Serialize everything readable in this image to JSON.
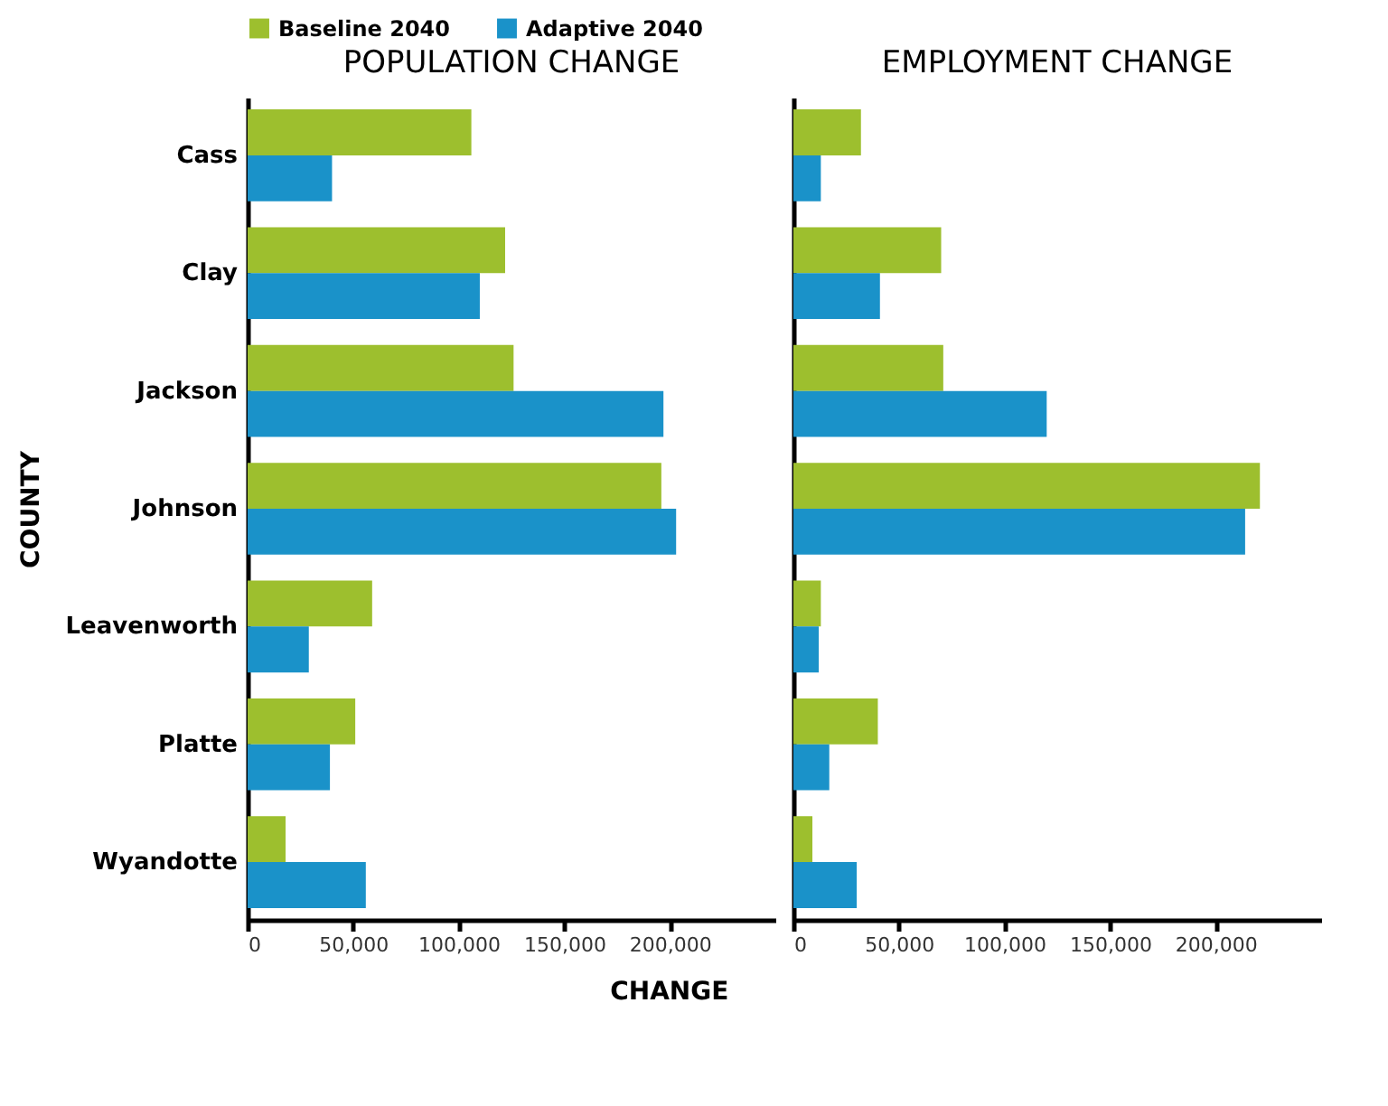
{
  "chart_data": [
    {
      "type": "bar",
      "orientation": "horizontal",
      "title": "POPULATION CHANGE",
      "xlabel": "CHANGE",
      "ylabel": "COUNTY",
      "legend": "top",
      "categories": [
        "Cass",
        "Clay",
        "Jackson",
        "Johnson",
        "Leavenworth",
        "Platte",
        "Wyandotte"
      ],
      "series": [
        {
          "name": "Baseline 2040",
          "color": "#9dbf2e",
          "values": [
            106000,
            122000,
            126000,
            196000,
            59000,
            51000,
            18000
          ]
        },
        {
          "name": "Adaptive 2040",
          "color": "#1a92c9",
          "values": [
            40000,
            110000,
            197000,
            203000,
            29000,
            39000,
            56000
          ]
        }
      ],
      "xlim": [
        0,
        250000
      ],
      "xticks": [
        0,
        {
          "value": 50000,
          "label": "50,000"
        },
        {
          "value": 100000,
          "label": "100,000"
        },
        {
          "value": 150000,
          "label": "150,000"
        },
        {
          "value": 200000,
          "label": "200,000"
        }
      ]
    },
    {
      "type": "bar",
      "orientation": "horizontal",
      "title": "EMPLOYMENT CHANGE",
      "legend": false,
      "tick_labels": "x",
      "categories": [
        "Cass",
        "Clay",
        "Jackson",
        "Johnson",
        "Leavenworth",
        "Platte",
        "Wyandotte"
      ],
      "series": [
        {
          "name": "Baseline 2040",
          "color": "#9dbf2e",
          "values": [
            32000,
            70000,
            71000,
            221000,
            13000,
            40000,
            9000
          ]
        },
        {
          "name": "Adaptive 2040",
          "color": "#1a92c9",
          "values": [
            13000,
            41000,
            120000,
            214000,
            12000,
            17000,
            30000
          ]
        }
      ],
      "xlim": [
        0,
        250000
      ],
      "xticks": [
        0,
        {
          "value": 50000,
          "label": "50,000"
        },
        {
          "value": 100000,
          "label": "100,000"
        },
        {
          "value": 150000,
          "label": "150,000"
        },
        {
          "value": 200000,
          "label": "200,000"
        }
      ]
    }
  ]
}
